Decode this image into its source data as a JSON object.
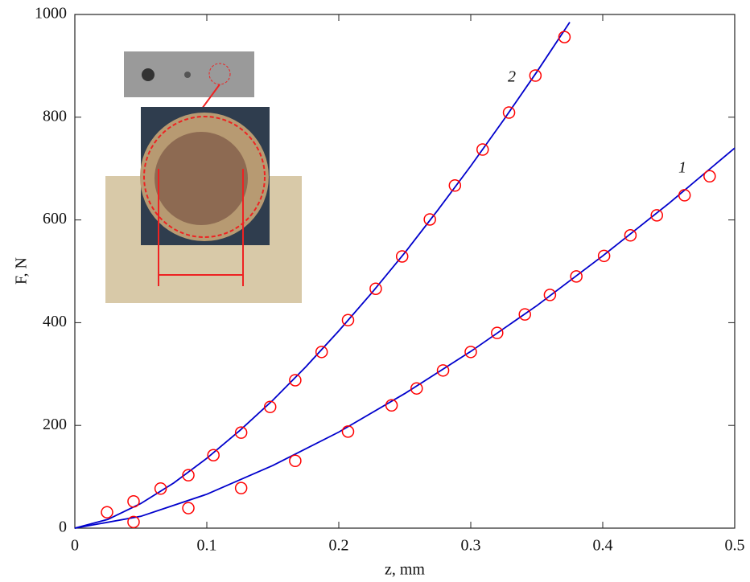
{
  "chart_data": {
    "type": "scatter",
    "x_label": "z, mm",
    "y_label": "F, N",
    "xlim": [
      0,
      0.5
    ],
    "ylim": [
      0,
      1000
    ],
    "xticks": [
      0,
      0.1,
      0.2,
      0.3,
      0.4,
      0.5
    ],
    "yticks": [
      0,
      200,
      400,
      600,
      800,
      1000
    ],
    "series": [
      {
        "name": "1",
        "color": "#ff0000",
        "x": [
          0.0445,
          0.086,
          0.126,
          0.167,
          0.207,
          0.24,
          0.259,
          0.279,
          0.3,
          0.32,
          0.341,
          0.36,
          0.38,
          0.401,
          0.421,
          0.441,
          0.462,
          0.481
        ],
        "values": [
          12,
          39,
          78,
          131,
          188,
          239,
          272,
          307,
          343,
          380,
          416,
          454,
          490,
          530,
          570,
          609,
          648,
          685
        ],
        "fit": {
          "color": "#0000cc",
          "x": [
            0,
            0.05,
            0.1,
            0.15,
            0.2,
            0.25,
            0.3,
            0.35,
            0.4,
            0.45,
            0.5
          ],
          "values": [
            0,
            23,
            66,
            122,
            187,
            262,
            344,
            433,
            530,
            632,
            740
          ]
        }
      },
      {
        "name": "2",
        "color": "#ff0000",
        "x": [
          0.0244,
          0.0445,
          0.065,
          0.086,
          0.105,
          0.126,
          0.148,
          0.167,
          0.187,
          0.207,
          0.228,
          0.248,
          0.269,
          0.288,
          0.309,
          0.329,
          0.349,
          0.371
        ],
        "values": [
          31,
          52,
          77,
          103,
          142,
          186,
          236,
          288,
          343,
          405,
          466,
          529,
          601,
          667,
          737,
          809,
          881,
          956
        ],
        "fit": {
          "color": "#0000cc",
          "x": [
            0,
            0.025,
            0.05,
            0.075,
            0.1,
            0.125,
            0.15,
            0.175,
            0.2,
            0.225,
            0.25,
            0.275,
            0.3,
            0.325,
            0.35,
            0.375
          ],
          "values": [
            0,
            17,
            48,
            88,
            136,
            190,
            249,
            314,
            384,
            458,
            536,
            619,
            705,
            795,
            888,
            985
          ]
        }
      }
    ]
  }
}
